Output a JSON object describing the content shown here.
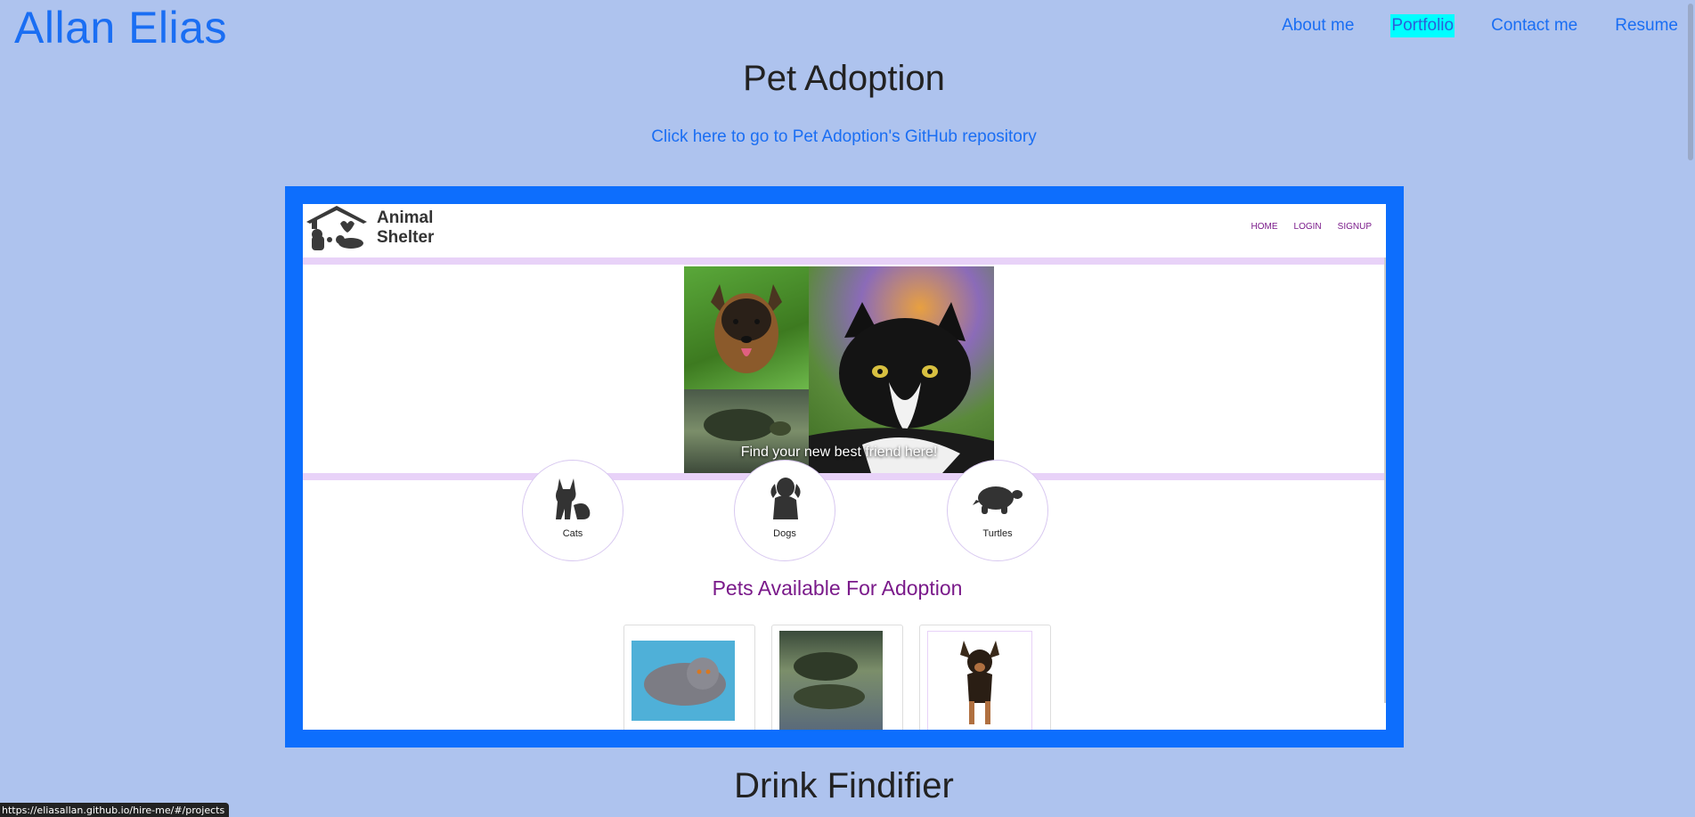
{
  "brand": "Allan Elias",
  "nav": [
    {
      "label": "About me",
      "active": false
    },
    {
      "label": "Portfolio",
      "active": true
    },
    {
      "label": "Contact me",
      "active": false
    },
    {
      "label": "Resume",
      "active": false
    }
  ],
  "project": {
    "title": "Pet Adoption",
    "repo_link": "Click here to go to Pet Adoption's GitHub repository"
  },
  "screenshot": {
    "logo_text_line1": "Animal",
    "logo_text_line2": "Shelter",
    "nav": [
      "HOME",
      "LOGIN",
      "SIGNUP"
    ],
    "hero_caption": "Find your new best friend here!",
    "categories": [
      "Cats",
      "Dogs",
      "Turtles"
    ],
    "section_heading": "Pets Available For Adoption"
  },
  "next_project": {
    "title": "Drink Findifier"
  },
  "status_bar": {
    "url": "https://eliasallan.github.io/hire-me/#/projects"
  },
  "colors": {
    "page_bg": "#aec3ee",
    "accent": "#1a6ef3",
    "frame": "#0d6efd",
    "active_nav_bg": "#00ffff",
    "site_purple": "#7a1a8a"
  }
}
